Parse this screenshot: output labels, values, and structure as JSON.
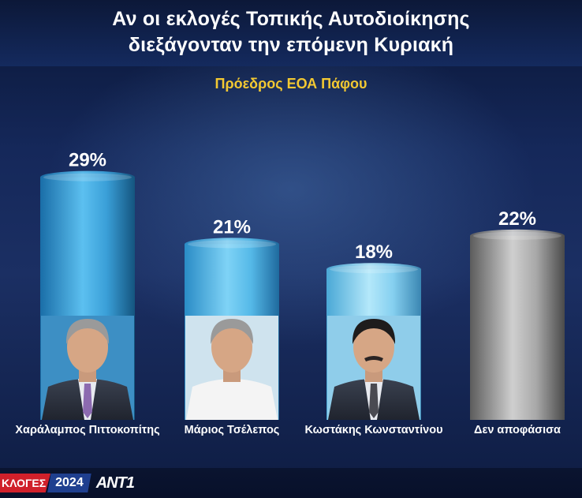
{
  "title_line1": "Αν οι εκλογές Τοπικής Αυτοδιοίκησης",
  "title_line2": "διεξάγονταν την επόμενη Κυριακή",
  "subtitle": "Πρόεδρος ΕΟΑ Πάφου",
  "footer": {
    "tag": "ΚΛΟΓΕΣ",
    "year": "2024",
    "logo": "ANT1"
  },
  "colors": {
    "title": "#ffffff",
    "subtitle": "#f2c832",
    "candidate_bar": "#3fa8e0",
    "undecided_bar": "#9a9a9a"
  },
  "chart_data": {
    "type": "bar",
    "title": "Πρόεδρος ΕΟΑ Πάφου",
    "categories": [
      "Χαράλαμπος Πιττοκοπίτης",
      "Μάριος Τσέλεπος",
      "Κωστάκης Κωνσταντίνου",
      "Δεν αποφάσισα"
    ],
    "values": [
      29,
      21,
      18,
      22
    ],
    "value_labels": [
      "29%",
      "21%",
      "18%",
      "22%"
    ],
    "bar_styles": [
      "candidate-dark",
      "candidate",
      "candidate-light",
      "undecided"
    ],
    "photos": [
      "portrait",
      "portrait",
      "portrait",
      "none"
    ],
    "unit": "%",
    "ylim": [
      0,
      30
    ],
    "grid": false,
    "legend": "none"
  }
}
